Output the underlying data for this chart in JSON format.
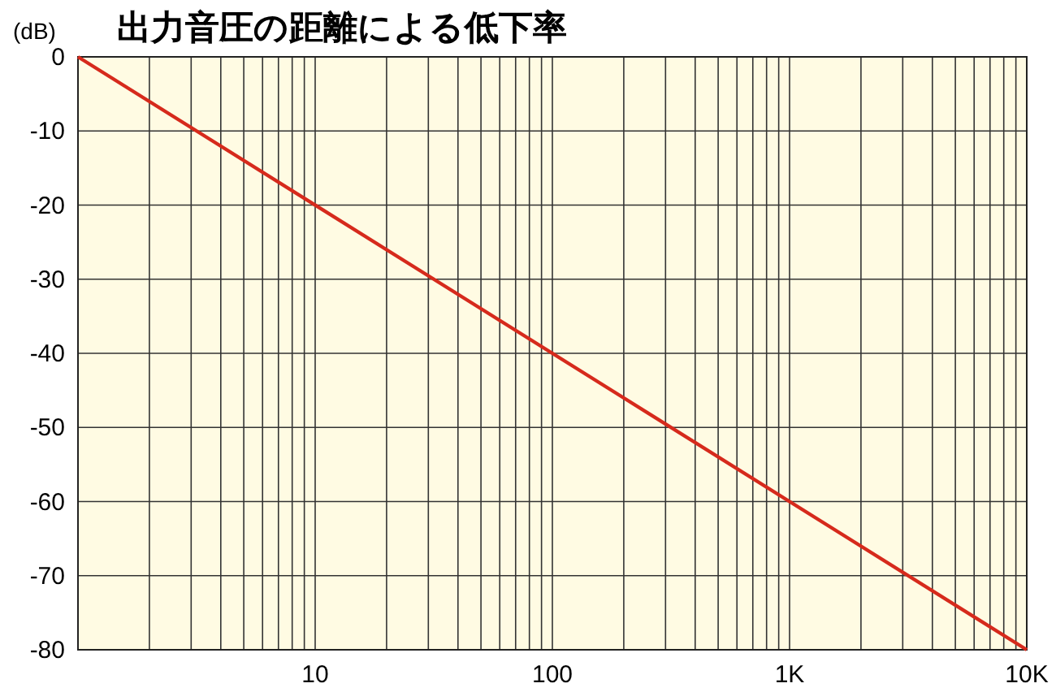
{
  "chart_data": {
    "type": "line",
    "title": "出力音圧の距離による低下率",
    "ylabel": "(dB)",
    "log": "x",
    "x": [
      1,
      10000
    ],
    "series": [
      {
        "color": "#d62a1c",
        "values": [
          0,
          -80
        ]
      }
    ],
    "xlim": [
      1,
      10000
    ],
    "xticks": [
      {
        "value": 2,
        "label": null
      },
      {
        "value": 3,
        "label": null
      },
      {
        "value": 4,
        "label": null
      },
      {
        "value": 5,
        "label": null
      },
      {
        "value": 6,
        "label": null
      },
      {
        "value": 7,
        "label": null
      },
      {
        "value": 8,
        "label": null
      },
      {
        "value": 9,
        "label": null
      },
      10,
      {
        "value": 20,
        "label": null
      },
      {
        "value": 30,
        "label": null
      },
      {
        "value": 40,
        "label": null
      },
      {
        "value": 50,
        "label": null
      },
      {
        "value": 60,
        "label": null
      },
      {
        "value": 70,
        "label": null
      },
      {
        "value": 80,
        "label": null
      },
      {
        "value": 90,
        "label": null
      },
      100,
      {
        "value": 200,
        "label": null
      },
      {
        "value": 300,
        "label": null
      },
      {
        "value": 400,
        "label": null
      },
      {
        "value": 500,
        "label": null
      },
      {
        "value": 600,
        "label": null
      },
      {
        "value": 700,
        "label": null
      },
      {
        "value": 800,
        "label": null
      },
      {
        "value": 900,
        "label": null
      },
      {
        "value": 1000,
        "label": "1K"
      },
      {
        "value": 2000,
        "label": null
      },
      {
        "value": 3000,
        "label": null
      },
      {
        "value": 4000,
        "label": null
      },
      {
        "value": 5000,
        "label": null
      },
      {
        "value": 6000,
        "label": null
      },
      {
        "value": 7000,
        "label": null
      },
      {
        "value": 8000,
        "label": null
      },
      {
        "value": 9000,
        "label": null
      },
      {
        "value": 10000,
        "label": "10K"
      }
    ],
    "ylim": [
      -80,
      0
    ],
    "yticks": [
      0,
      -10,
      -20,
      -30,
      -40,
      -50,
      -60,
      -70,
      -80
    ],
    "grid": true
  }
}
